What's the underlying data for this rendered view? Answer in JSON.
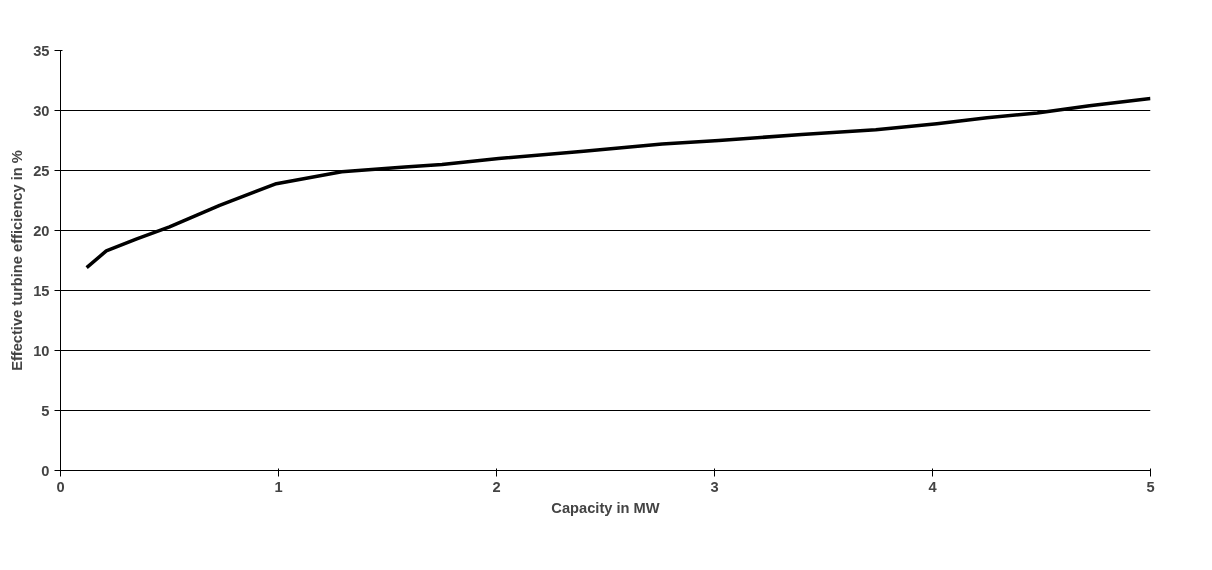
{
  "chart_data": {
    "type": "line",
    "xlabel": "Capacity in MW",
    "ylabel": "Effective turbine efficiency in %",
    "series": [
      {
        "color": "#000000",
        "x": [
          0.12,
          0.21,
          0.35,
          0.5,
          0.73,
          0.99,
          1.29,
          1.58,
          1.75,
          2.01,
          2.4,
          2.76,
          3.02,
          3.4,
          3.74,
          4.02,
          4.25,
          4.48,
          4.72,
          5.0
        ],
        "values": [
          16.9,
          18.3,
          19.3,
          20.3,
          22.1,
          23.9,
          24.9,
          25.3,
          25.5,
          26.0,
          26.6,
          27.2,
          27.5,
          28.0,
          28.4,
          28.9,
          29.4,
          29.8,
          30.4,
          31.0
        ]
      }
    ],
    "xlim": [
      0,
      5
    ],
    "xticks": [
      0,
      1,
      2,
      3,
      4,
      5
    ],
    "ylim": [
      0,
      35
    ],
    "yticks": [
      0,
      5,
      10,
      15,
      20,
      25,
      30,
      35
    ],
    "grid": "y",
    "marker": "none",
    "line_style": "solid"
  }
}
